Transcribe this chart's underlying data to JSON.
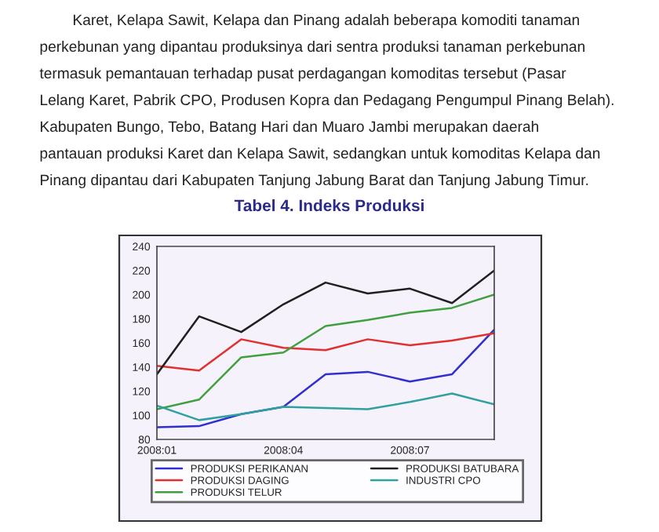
{
  "chart_data": {
    "type": "line",
    "title": "Tabel 4. Indeks Produksi",
    "annotations": [
      "Karet, Kelapa Sawit, Kelapa dan Pinang adalah beberapa komoditi tanaman",
      "perkebunan yang dipantau produksinya dari sentra produksi tanaman perkebunan",
      "termasuk pemantauan terhadap pusat perdagangan komoditas tersebut (Pasar",
      "Lelang Karet, Pabrik CPO, Produsen Kopra dan Pedagang Pengumpul Pinang Belah).",
      "Kabupaten Bungo, Tebo, Batang Hari dan Muaro Jambi merupakan daerah",
      "pantauan produksi Karet dan Kelapa Sawit, sedangkan untuk komoditas Kelapa dan",
      "Pinang dipantau dari Kabupaten Tanjung Jabung Barat dan Tanjung Jabung Timur."
    ],
    "categories": [
      "2008:01",
      null,
      null,
      "2008:04",
      null,
      null,
      "2008:07",
      null,
      null
    ],
    "series": [
      {
        "name": "PRODUKSI PERIKANAN",
        "color": "#3030d0",
        "values": [
          90,
          91,
          101,
          107,
          134,
          136,
          128,
          134,
          171
        ]
      },
      {
        "name": "PRODUKSI DAGING",
        "color": "#e03030",
        "values": [
          141,
          137,
          163,
          156,
          154,
          163,
          158,
          162,
          168
        ]
      },
      {
        "name": "PRODUKSI TELUR",
        "color": "#40a040",
        "values": [
          105,
          113,
          148,
          152,
          174,
          179,
          185,
          189,
          200
        ]
      },
      {
        "name": "PRODUKSI BATUBARA",
        "color": "#202020",
        "values": [
          134,
          182,
          169,
          192,
          210,
          201,
          205,
          193,
          220
        ]
      },
      {
        "name": "INDUSTRI CPO",
        "color": "#30a0a0",
        "values": [
          108,
          96,
          101,
          107,
          106,
          105,
          111,
          118,
          109
        ]
      }
    ],
    "ylim": [
      80,
      240
    ],
    "yticks": [
      80,
      100,
      120,
      140,
      160,
      180,
      200,
      220,
      240
    ],
    "grid": false,
    "legend": "bottom"
  }
}
